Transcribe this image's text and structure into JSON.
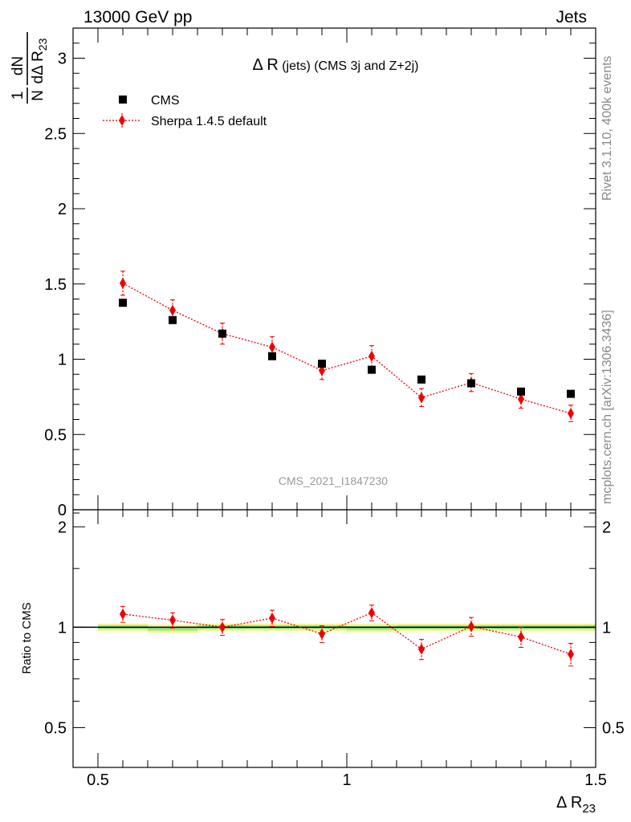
{
  "header": {
    "left_label": "13000 GeV pp",
    "right_label": "Jets"
  },
  "side_labels": {
    "rivet": "Rivet 3.1.10,  400k events",
    "mcplots": "mcplots.cern.ch [arXiv:1306.3436]"
  },
  "watermark": "CMS_2021_I1847230",
  "chart_data": [
    {
      "type": "scatter",
      "panel": "main",
      "title": "Δ R (jets) (CMS 3j and Z+2j)",
      "title_parts": [
        "Δ R",
        " (jets)",
        " (CMS 3j and Z+2j)"
      ],
      "ylabel_parts": [
        "1",
        "N",
        "dN",
        "dΔ R",
        "23"
      ],
      "xlim": [
        0.45,
        1.5
      ],
      "ylim": [
        0,
        3.2
      ],
      "yticks": [
        0,
        0.5,
        1,
        1.5,
        2,
        2.5,
        3
      ],
      "ytick_labels": [
        "0",
        "0.5",
        "1",
        "1.5",
        "2",
        "2.5",
        "3"
      ],
      "legend": [
        {
          "name": "CMS",
          "marker": "square",
          "color": "#000000"
        },
        {
          "name": "Sherpa 1.4.5 default",
          "marker": "diamond",
          "color": "#ee0000"
        }
      ],
      "x": [
        0.55,
        0.65,
        0.75,
        0.85,
        0.95,
        1.05,
        1.15,
        1.25,
        1.35,
        1.45
      ],
      "series": [
        {
          "name": "CMS",
          "values": [
            1.375,
            1.26,
            1.17,
            1.02,
            0.97,
            0.93,
            0.865,
            0.84,
            0.785,
            0.77
          ],
          "errors": [
            0.015,
            0.015,
            0.015,
            0.012,
            0.012,
            0.012,
            0.01,
            0.01,
            0.01,
            0.01
          ]
        },
        {
          "name": "Sherpa 1.4.5 default",
          "values": [
            1.505,
            1.325,
            1.17,
            1.08,
            0.925,
            1.02,
            0.745,
            0.845,
            0.735,
            0.64
          ],
          "errors": [
            0.08,
            0.07,
            0.07,
            0.07,
            0.06,
            0.07,
            0.06,
            0.06,
            0.06,
            0.055
          ]
        }
      ]
    },
    {
      "type": "scatter",
      "panel": "ratio",
      "ylabel": "Ratio to CMS",
      "xlabel_parts": [
        "Δ R",
        "23"
      ],
      "xlim": [
        0.45,
        1.5
      ],
      "ylim": [
        0.38,
        2.25
      ],
      "yticks": [
        0.5,
        1,
        2
      ],
      "ytick_labels": [
        "0.5",
        "1",
        "2"
      ],
      "xticks": [
        0.5,
        1,
        1.5
      ],
      "xtick_labels": [
        "0.5",
        "1",
        "1.5"
      ],
      "x": [
        0.55,
        0.65,
        0.75,
        0.85,
        0.95,
        1.05,
        1.15,
        1.25,
        1.35,
        1.45
      ],
      "band_inner": [
        0.012,
        0.012,
        0.013,
        0.012,
        0.012,
        0.013,
        0.012,
        0.012,
        0.013,
        0.013
      ],
      "band_outer": [
        0.025,
        0.028,
        0.025,
        0.025,
        0.025,
        0.028,
        0.025,
        0.025,
        0.025,
        0.025
      ],
      "band_center": [
        1.0,
        0.99,
        1.0,
        1.0,
        1.0,
        0.995,
        1.0,
        1.0,
        1.0,
        1.0
      ],
      "series": [
        {
          "name": "Sherpa 1.4.5 default",
          "values": [
            1.095,
            1.05,
            1.0,
            1.065,
            0.955,
            1.105,
            0.86,
            1.005,
            0.935,
            0.83
          ],
          "errors": [
            0.06,
            0.055,
            0.055,
            0.06,
            0.055,
            0.06,
            0.06,
            0.065,
            0.065,
            0.065
          ]
        }
      ]
    }
  ]
}
